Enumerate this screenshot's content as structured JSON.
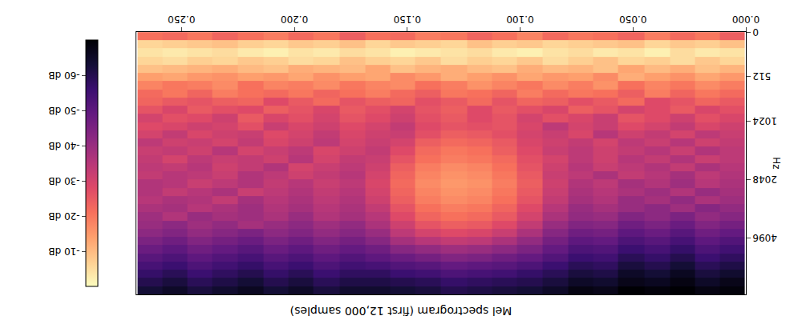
{
  "chart_data": {
    "type": "heatmap",
    "title": "Mel spectrogram (first 12,000 samples)",
    "y_label": "Hz",
    "x": [
      0.006,
      0.017,
      0.028,
      0.039,
      0.051,
      0.062,
      0.073,
      0.084,
      0.096,
      0.107,
      0.118,
      0.129,
      0.141,
      0.152,
      0.163,
      0.174,
      0.186,
      0.197,
      0.208,
      0.219,
      0.231,
      0.242,
      0.253,
      0.264
    ],
    "xlim": [
      0,
      0.27
    ],
    "xticks": [
      {
        "value": 0,
        "label": "0.000"
      },
      {
        "value": 0.05,
        "label": "0.050"
      },
      {
        "value": 0.1,
        "label": "0.100"
      },
      {
        "value": 0.15,
        "label": "0.150"
      },
      {
        "value": 0.2,
        "label": "0.200"
      },
      {
        "value": 0.25,
        "label": "0.250"
      }
    ],
    "y": [
      47,
      141,
      236,
      330,
      424,
      519,
      613,
      707,
      801,
      896,
      990,
      1090,
      1202,
      1325,
      1460,
      1609,
      1773,
      1955,
      2154,
      2374,
      2617,
      2884,
      3178,
      3503,
      3861,
      4255,
      4690,
      5169,
      5697,
      6278,
      6919,
      7629
    ],
    "ylim": [
      0,
      8000
    ],
    "yticks": [
      0,
      512,
      1024,
      2048,
      4096
    ],
    "colorbar_range": [
      -70,
      0
    ],
    "colorbar_ticks": [
      {
        "value": -60,
        "label": "-60 dB"
      },
      {
        "value": -50,
        "label": "-50 dB"
      },
      {
        "value": -40,
        "label": "-40 dB"
      },
      {
        "value": -30,
        "label": "-30 dB"
      },
      {
        "value": -20,
        "label": "-20 dB"
      },
      {
        "value": -10,
        "label": "-10 dB"
      }
    ],
    "cells": [
      [
        -24,
        -20,
        -22,
        -19,
        -23,
        -21,
        -20,
        -22,
        -18,
        -21,
        -23,
        -20,
        -19,
        -22,
        -21,
        -24,
        -20,
        -22,
        -19,
        -21,
        -23,
        -20,
        -22,
        -21
      ],
      [
        -9,
        -7,
        -8,
        -6,
        -9,
        -8,
        -7,
        -6,
        -8,
        -7,
        -9,
        -6,
        -7,
        -8,
        -6,
        -9,
        -7,
        -8,
        -6,
        -7,
        -9,
        -8,
        -7,
        -6
      ],
      [
        -4,
        -3,
        -5,
        -2,
        -4,
        -3,
        -5,
        -4,
        -2,
        -3,
        -5,
        -4,
        -3,
        -2,
        -4,
        -5,
        -3,
        -4,
        -2,
        -3,
        -5,
        -4,
        -3,
        -4
      ],
      [
        -6,
        -8,
        -5,
        -7,
        -6,
        -9,
        -7,
        -5,
        -8,
        -6,
        -7,
        -5,
        -8,
        -6,
        -7,
        -9,
        -6,
        -5,
        -7,
        -8,
        -6,
        -7,
        -5,
        -6
      ],
      [
        -11,
        -9,
        -12,
        -10,
        -13,
        -9,
        -11,
        -10,
        -12,
        -9,
        -10,
        -12,
        -11,
        -9,
        -13,
        -10,
        -11,
        -12,
        -9,
        -10,
        -12,
        -11,
        -10,
        -9
      ],
      [
        -15,
        -13,
        -16,
        -14,
        -12,
        -17,
        -14,
        -15,
        -13,
        -16,
        -14,
        -12,
        -15,
        -17,
        -13,
        -14,
        -16,
        -13,
        -15,
        -14,
        -16,
        -15,
        -13,
        -14
      ],
      [
        -19,
        -17,
        -20,
        -18,
        -21,
        -16,
        -19,
        -17,
        -20,
        -18,
        -16,
        -19,
        -21,
        -17,
        -18,
        -20,
        -17,
        -19,
        -18,
        -21,
        -17,
        -19,
        -20,
        -18
      ],
      [
        -22,
        -20,
        -23,
        -19,
        -24,
        -21,
        -20,
        -22,
        -19,
        -23,
        -21,
        -20,
        -24,
        -22,
        -19,
        -21,
        -23,
        -20,
        -22,
        -21,
        -19,
        -23,
        -20,
        -22
      ],
      [
        -25,
        -23,
        -26,
        -28,
        -22,
        -25,
        -27,
        -24,
        -23,
        -26,
        -22,
        -25,
        -27,
        -23,
        -24,
        -26,
        -22,
        -25,
        -28,
        -23,
        -24,
        -26,
        -25,
        -23
      ],
      [
        -27,
        -29,
        -25,
        -28,
        -30,
        -26,
        -24,
        -29,
        -27,
        -25,
        -28,
        -24,
        -26,
        -30,
        -27,
        -25,
        -29,
        -26,
        -24,
        -28,
        -27,
        -25,
        -29,
        -26
      ],
      [
        -29,
        -27,
        -31,
        -28,
        -26,
        -32,
        -29,
        -27,
        -30,
        -26,
        -28,
        -25,
        -27,
        -31,
        -28,
        -26,
        -30,
        -27,
        -29,
        -25,
        -31,
        -28,
        -27,
        -30
      ],
      [
        -31,
        -29,
        -33,
        -30,
        -28,
        -32,
        -30,
        -34,
        -29,
        -26,
        -27,
        -26,
        -28,
        -33,
        -30,
        -28,
        -31,
        -29,
        -32,
        -27,
        -30,
        -31,
        -29,
        -28
      ],
      [
        -32,
        -34,
        -30,
        -33,
        -31,
        -35,
        -29,
        -32,
        -30,
        -27,
        -25,
        -24,
        -27,
        -32,
        -31,
        -29,
        -33,
        -30,
        -28,
        -32,
        -31,
        -29,
        -33,
        -30
      ],
      [
        -33,
        -31,
        -35,
        -32,
        -34,
        -30,
        -33,
        -31,
        -29,
        -25,
        -23,
        -22,
        -24,
        -30,
        -32,
        -30,
        -34,
        -31,
        -29,
        -33,
        -30,
        -32,
        -31,
        -34
      ],
      [
        -34,
        -36,
        -32,
        -35,
        -33,
        -31,
        -34,
        -32,
        -28,
        -24,
        -21,
        -20,
        -22,
        -28,
        -33,
        -31,
        -29,
        -34,
        -32,
        -30,
        -35,
        -31,
        -33,
        -32
      ],
      [
        -34,
        -32,
        -36,
        -33,
        -35,
        -31,
        -34,
        -30,
        -27,
        -22,
        -20,
        -19,
        -21,
        -26,
        -32,
        -33,
        -30,
        -35,
        -31,
        -33,
        -32,
        -34,
        -30,
        -33
      ],
      [
        -35,
        -37,
        -33,
        -36,
        -34,
        -32,
        -35,
        -31,
        -26,
        -21,
        -18,
        -17,
        -19,
        -24,
        -31,
        -34,
        -32,
        -30,
        -36,
        -33,
        -31,
        -35,
        -33,
        -34
      ],
      [
        -36,
        -34,
        -38,
        -35,
        -33,
        -37,
        -34,
        -32,
        -25,
        -20,
        -17,
        -16,
        -18,
        -23,
        -30,
        -35,
        -33,
        -31,
        -34,
        -36,
        -32,
        -34,
        -35,
        -33
      ],
      [
        -37,
        -35,
        -39,
        -36,
        -38,
        -34,
        -36,
        -31,
        -24,
        -19,
        -16,
        -15,
        -17,
        -22,
        -29,
        -34,
        -32,
        -35,
        -33,
        -36,
        -34,
        -32,
        -35,
        -36
      ],
      [
        -38,
        -40,
        -36,
        -39,
        -37,
        -35,
        -37,
        -32,
        -25,
        -20,
        -17,
        -16,
        -18,
        -23,
        -30,
        -35,
        -33,
        -36,
        -34,
        -32,
        -37,
        -35,
        -33,
        -36
      ],
      [
        -39,
        -37,
        -41,
        -38,
        -40,
        -36,
        -38,
        -33,
        -26,
        -21,
        -18,
        -17,
        -19,
        -24,
        -31,
        -36,
        -34,
        -37,
        -35,
        -38,
        -33,
        -36,
        -37,
        -35
      ],
      [
        -41,
        -43,
        -39,
        -42,
        -40,
        -38,
        -40,
        -35,
        -28,
        -23,
        -20,
        -19,
        -21,
        -26,
        -33,
        -37,
        -35,
        -38,
        -36,
        -39,
        -37,
        -35,
        -38,
        -37
      ],
      [
        -43,
        -41,
        -45,
        -42,
        -44,
        -40,
        -41,
        -37,
        -30,
        -25,
        -22,
        -21,
        -23,
        -28,
        -35,
        -38,
        -36,
        -40,
        -37,
        -39,
        -38,
        -40,
        -36,
        -39
      ],
      [
        -46,
        -44,
        -48,
        -45,
        -47,
        -43,
        -44,
        -40,
        -33,
        -28,
        -25,
        -24,
        -26,
        -31,
        -37,
        -41,
        -39,
        -42,
        -40,
        -38,
        -41,
        -39,
        -42,
        -40
      ],
      [
        -49,
        -47,
        -51,
        -48,
        -50,
        -46,
        -47,
        -43,
        -37,
        -32,
        -29,
        -28,
        -30,
        -34,
        -40,
        -43,
        -41,
        -44,
        -42,
        -45,
        -43,
        -41,
        -44,
        -42
      ],
      [
        -52,
        -50,
        -54,
        -51,
        -53,
        -49,
        -50,
        -46,
        -41,
        -37,
        -34,
        -33,
        -35,
        -38,
        -43,
        -46,
        -44,
        -47,
        -45,
        -48,
        -46,
        -44,
        -47,
        -45
      ],
      [
        -55,
        -53,
        -57,
        -54,
        -56,
        -52,
        -53,
        -49,
        -45,
        -42,
        -40,
        -39,
        -41,
        -43,
        -47,
        -49,
        -47,
        -50,
        -48,
        -51,
        -49,
        -47,
        -50,
        -48
      ],
      [
        -58,
        -56,
        -60,
        -57,
        -59,
        -55,
        -56,
        -52,
        -49,
        -47,
        -45,
        -44,
        -46,
        -48,
        -50,
        -52,
        -50,
        -53,
        -51,
        -54,
        -52,
        -50,
        -53,
        -51
      ],
      [
        -61,
        -59,
        -63,
        -60,
        -62,
        -58,
        -59,
        -56,
        -53,
        -51,
        -50,
        -49,
        -51,
        -52,
        -54,
        -55,
        -53,
        -56,
        -54,
        -57,
        -55,
        -53,
        -56,
        -54
      ],
      [
        -64,
        -62,
        -66,
        -63,
        -65,
        -61,
        -62,
        -59,
        -57,
        -55,
        -54,
        -53,
        -55,
        -56,
        -58,
        -58,
        -56,
        -59,
        -57,
        -60,
        -58,
        -56,
        -59,
        -57
      ],
      [
        -67,
        -65,
        -68,
        -66,
        -67,
        -64,
        -65,
        -62,
        -60,
        -59,
        -58,
        -57,
        -59,
        -60,
        -61,
        -61,
        -59,
        -62,
        -60,
        -63,
        -61,
        -59,
        -62,
        -60
      ],
      [
        -69,
        -68,
        -70,
        -69,
        -70,
        -67,
        -68,
        -65,
        -63,
        -62,
        -61,
        -60,
        -62,
        -63,
        -64,
        -64,
        -62,
        -65,
        -63,
        -66,
        -64,
        -62,
        -65,
        -63
      ]
    ]
  }
}
